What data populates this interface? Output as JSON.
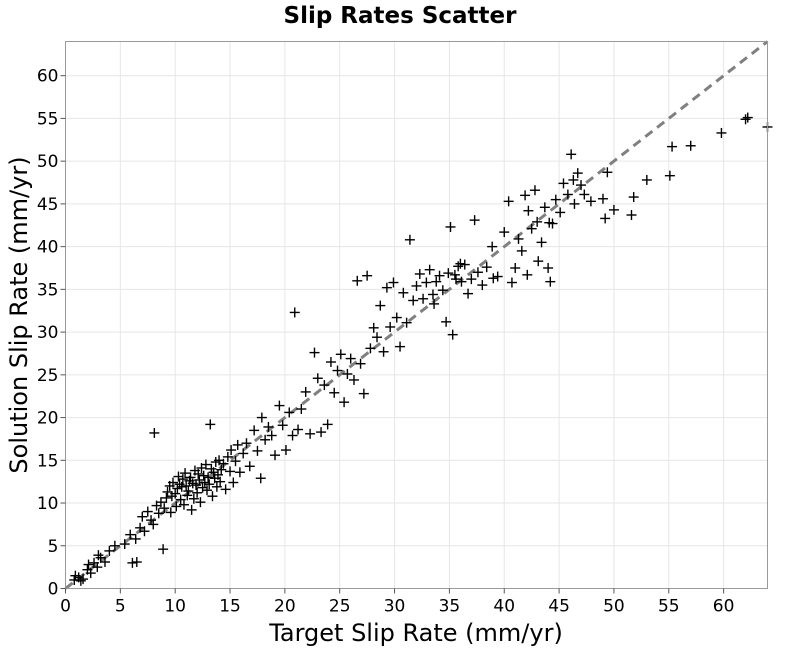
{
  "chart_data": {
    "type": "scatter",
    "title": "Slip Rates Scatter",
    "xlabel": "Target Slip Rate (mm/yr)",
    "ylabel": "Solution Slip Rate (mm/yr)",
    "xlim": [
      0,
      64
    ],
    "ylim": [
      0,
      64
    ],
    "xticks": [
      0,
      5,
      10,
      15,
      20,
      25,
      30,
      35,
      40,
      45,
      50,
      55,
      60
    ],
    "yticks": [
      0,
      5,
      10,
      15,
      20,
      25,
      30,
      35,
      40,
      45,
      50,
      55,
      60
    ],
    "grid": true,
    "marker": "plus",
    "marker_color": "#000000",
    "reference_line": {
      "style": "dashed",
      "color": "#808080",
      "x": [
        0,
        64
      ],
      "y": [
        0,
        64
      ]
    },
    "points": [
      [
        0.8,
        1.0
      ],
      [
        1.2,
        1.3
      ],
      [
        1.6,
        1.1
      ],
      [
        2.0,
        2.2
      ],
      [
        2.3,
        1.8
      ],
      [
        2.6,
        3.0
      ],
      [
        2.9,
        2.5
      ],
      [
        3.2,
        3.6
      ],
      [
        3.6,
        3.1
      ],
      [
        4.0,
        4.4
      ],
      [
        4.5,
        5.0
      ],
      [
        1.4,
        0.9
      ],
      [
        2.1,
        2.8
      ],
      [
        3.0,
        3.9
      ],
      [
        0.9,
        1.5
      ],
      [
        5.4,
        5.2
      ],
      [
        5.9,
        6.3
      ],
      [
        6.1,
        3.0
      ],
      [
        6.4,
        5.8
      ],
      [
        6.5,
        3.1
      ],
      [
        6.8,
        7.1
      ],
      [
        7.0,
        8.4
      ],
      [
        7.2,
        6.7
      ],
      [
        7.5,
        9.0
      ],
      [
        7.8,
        8.0
      ],
      [
        8.0,
        7.5
      ],
      [
        8.1,
        18.2
      ],
      [
        8.3,
        9.7
      ],
      [
        8.5,
        8.8
      ],
      [
        8.7,
        10.1
      ],
      [
        8.9,
        4.6
      ],
      [
        9.0,
        9.4
      ],
      [
        9.2,
        10.6
      ],
      [
        9.3,
        11.3
      ],
      [
        9.5,
        12.0
      ],
      [
        9.6,
        8.9
      ],
      [
        9.7,
        10.8
      ],
      [
        9.8,
        12.4
      ],
      [
        10.0,
        11.1
      ],
      [
        10.1,
        9.6
      ],
      [
        10.2,
        11.7
      ],
      [
        10.3,
        13.1
      ],
      [
        10.4,
        12.2
      ],
      [
        10.5,
        10.4
      ],
      [
        10.6,
        11.9
      ],
      [
        10.7,
        12.8
      ],
      [
        10.8,
        9.8
      ],
      [
        10.9,
        13.5
      ],
      [
        11.0,
        12.0
      ],
      [
        11.1,
        10.9
      ],
      [
        11.2,
        11.4
      ],
      [
        11.3,
        12.6
      ],
      [
        11.4,
        13.0
      ],
      [
        11.5,
        9.2
      ],
      [
        11.6,
        12.3
      ],
      [
        11.7,
        10.5
      ],
      [
        11.8,
        13.8
      ],
      [
        11.9,
        12.1
      ],
      [
        12.0,
        11.2
      ],
      [
        12.1,
        13.4
      ],
      [
        12.2,
        12.7
      ],
      [
        12.3,
        10.1
      ],
      [
        12.4,
        14.1
      ],
      [
        12.5,
        11.8
      ],
      [
        12.6,
        13.2
      ],
      [
        12.7,
        12.4
      ],
      [
        12.8,
        14.5
      ],
      [
        12.9,
        11.5
      ],
      [
        13.0,
        13.0
      ],
      [
        13.1,
        12.2
      ],
      [
        13.2,
        19.2
      ],
      [
        13.3,
        14.0
      ],
      [
        13.4,
        10.8
      ],
      [
        13.5,
        13.6
      ],
      [
        13.6,
        12.9
      ],
      [
        13.7,
        14.8
      ],
      [
        13.8,
        11.9
      ],
      [
        13.9,
        13.3
      ],
      [
        14.0,
        15.0
      ],
      [
        14.1,
        12.5
      ],
      [
        14.2,
        13.9
      ],
      [
        14.4,
        14.6
      ],
      [
        14.6,
        11.6
      ],
      [
        14.8,
        15.4
      ],
      [
        15.0,
        13.7
      ],
      [
        15.1,
        16.2
      ],
      [
        15.3,
        12.4
      ],
      [
        15.5,
        14.9
      ],
      [
        15.7,
        16.8
      ],
      [
        15.9,
        13.6
      ],
      [
        16.2,
        15.8
      ],
      [
        16.5,
        17.0
      ],
      [
        16.8,
        14.3
      ],
      [
        17.2,
        18.5
      ],
      [
        17.5,
        16.1
      ],
      [
        17.8,
        12.9
      ],
      [
        17.9,
        20.0
      ],
      [
        18.2,
        17.4
      ],
      [
        18.5,
        18.9
      ],
      [
        18.8,
        17.9
      ],
      [
        19.1,
        15.6
      ],
      [
        19.5,
        21.4
      ],
      [
        19.8,
        19.1
      ],
      [
        20.1,
        16.2
      ],
      [
        20.4,
        20.6
      ],
      [
        20.7,
        17.9
      ],
      [
        20.9,
        32.3
      ],
      [
        21.2,
        18.6
      ],
      [
        21.5,
        21.0
      ],
      [
        21.9,
        23.0
      ],
      [
        22.3,
        18.1
      ],
      [
        22.7,
        27.6
      ],
      [
        23.0,
        24.6
      ],
      [
        23.3,
        18.3
      ],
      [
        23.6,
        23.8
      ],
      [
        23.9,
        19.2
      ],
      [
        24.2,
        26.5
      ],
      [
        24.5,
        22.9
      ],
      [
        24.8,
        25.5
      ],
      [
        25.1,
        27.4
      ],
      [
        25.4,
        21.8
      ],
      [
        25.7,
        25.1
      ],
      [
        26.0,
        26.9
      ],
      [
        26.3,
        24.4
      ],
      [
        26.6,
        36.0
      ],
      [
        26.9,
        26.3
      ],
      [
        27.2,
        22.8
      ],
      [
        27.5,
        36.6
      ],
      [
        27.8,
        28.1
      ],
      [
        28.1,
        30.5
      ],
      [
        28.4,
        29.4
      ],
      [
        28.7,
        33.1
      ],
      [
        29.0,
        27.7
      ],
      [
        29.3,
        35.2
      ],
      [
        29.6,
        30.6
      ],
      [
        29.9,
        35.8
      ],
      [
        30.2,
        31.7
      ],
      [
        30.5,
        28.3
      ],
      [
        30.8,
        34.6
      ],
      [
        31.1,
        31.1
      ],
      [
        31.4,
        40.8
      ],
      [
        31.7,
        33.7
      ],
      [
        32.0,
        35.4
      ],
      [
        32.3,
        36.8
      ],
      [
        32.6,
        33.9
      ],
      [
        32.9,
        35.8
      ],
      [
        33.2,
        37.3
      ],
      [
        33.5,
        34.4
      ],
      [
        33.8,
        35.9
      ],
      [
        34.1,
        36.6
      ],
      [
        34.4,
        34.9
      ],
      [
        34.7,
        31.2
      ],
      [
        34.9,
        36.9
      ],
      [
        35.1,
        42.3
      ],
      [
        35.3,
        29.7
      ],
      [
        35.5,
        36.7
      ],
      [
        35.8,
        37.7
      ],
      [
        36.1,
        35.9
      ],
      [
        36.4,
        37.9
      ],
      [
        36.7,
        34.5
      ],
      [
        37.0,
        36.2
      ],
      [
        37.3,
        43.1
      ],
      [
        37.6,
        37.0
      ],
      [
        38.0,
        35.5
      ],
      [
        38.4,
        37.6
      ],
      [
        38.9,
        40.0
      ],
      [
        39.4,
        36.5
      ],
      [
        40.0,
        41.7
      ],
      [
        40.4,
        45.3
      ],
      [
        40.7,
        35.8
      ],
      [
        41.0,
        37.5
      ],
      [
        41.3,
        40.9
      ],
      [
        41.6,
        39.5
      ],
      [
        41.9,
        46.0
      ],
      [
        42.2,
        44.2
      ],
      [
        42.5,
        42.1
      ],
      [
        42.8,
        46.6
      ],
      [
        43.1,
        38.3
      ],
      [
        43.4,
        40.5
      ],
      [
        43.7,
        44.6
      ],
      [
        44.0,
        37.5
      ],
      [
        44.2,
        35.9
      ],
      [
        44.4,
        42.7
      ],
      [
        44.7,
        45.5
      ],
      [
        45.1,
        44.0
      ],
      [
        45.4,
        47.4
      ],
      [
        45.8,
        46.1
      ],
      [
        46.1,
        50.8
      ],
      [
        46.4,
        45.0
      ],
      [
        46.7,
        48.6
      ],
      [
        47.0,
        47.2
      ],
      [
        47.3,
        46.1
      ],
      [
        47.9,
        45.3
      ],
      [
        49.2,
        43.3
      ],
      [
        49.4,
        48.7
      ],
      [
        50.0,
        44.3
      ],
      [
        51.6,
        43.7
      ],
      [
        51.8,
        45.8
      ],
      [
        53.0,
        47.8
      ],
      [
        55.1,
        48.3
      ],
      [
        55.3,
        51.7
      ],
      [
        57.0,
        51.8
      ],
      [
        59.8,
        53.3
      ],
      [
        62.0,
        54.9
      ],
      [
        62.2,
        55.1
      ],
      [
        64.0,
        54.0
      ],
      [
        49.0,
        45.6
      ],
      [
        43.0,
        42.9
      ],
      [
        46.3,
        47.8
      ],
      [
        36.0,
        38.0
      ],
      [
        39.0,
        36.3
      ],
      [
        33.6,
        33.3
      ],
      [
        35.6,
        36.2
      ],
      [
        42.1,
        36.7
      ],
      [
        44.1,
        42.8
      ]
    ]
  }
}
